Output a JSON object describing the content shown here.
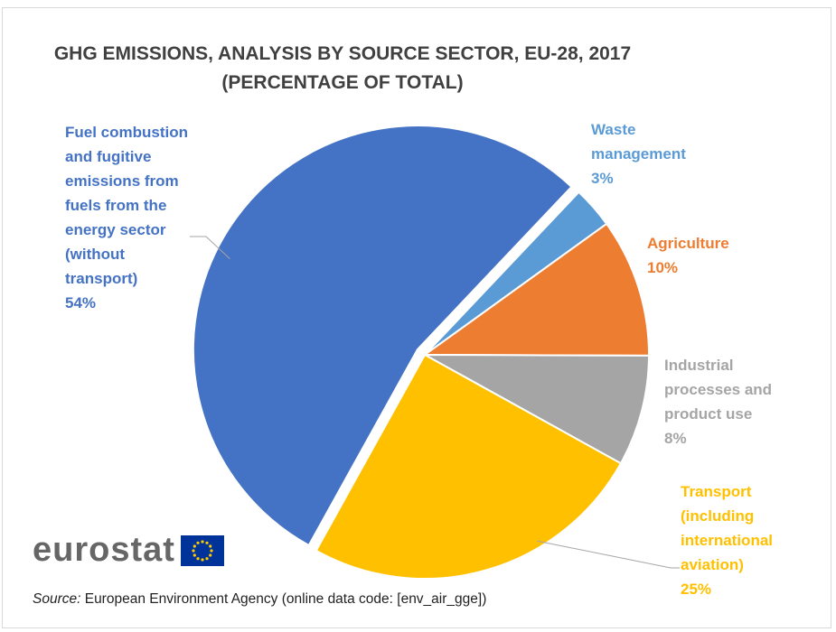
{
  "chart_data": {
    "type": "pie",
    "title": "GHG EMISSIONS, ANALYSIS BY SOURCE SECTOR, EU-28, 2017\n(PERCENTAGE OF TOTAL)",
    "slices": [
      {
        "name": "Fuel combustion\nand fugitive\nemissions from\nfuels from the\nenergy sector\n(without\ntransport)",
        "value": 54,
        "value_label": "54%",
        "color": "#4472c4",
        "exploded": true
      },
      {
        "name": "Waste\nmanagement",
        "value": 3,
        "value_label": "3%",
        "color": "#5b9bd5",
        "exploded": false
      },
      {
        "name": "Agriculture",
        "value": 10,
        "value_label": "10%",
        "color": "#ed7d31",
        "exploded": false
      },
      {
        "name": "Industrial\nprocesses and\nproduct use",
        "value": 8,
        "value_label": "8%",
        "color": "#a5a5a5",
        "exploded": false
      },
      {
        "name": "Transport\n(including\ninternational\naviation)",
        "value": 25,
        "value_label": "25%",
        "color": "#ffc000",
        "exploded": false
      }
    ],
    "start_angle_deg": -151,
    "direction": "clockwise",
    "legend": "none"
  },
  "logo": {
    "text": "eurostat"
  },
  "source": {
    "prefix": "Source:",
    "text": " European Environment Agency (online data code:  [env_air_gge])"
  }
}
